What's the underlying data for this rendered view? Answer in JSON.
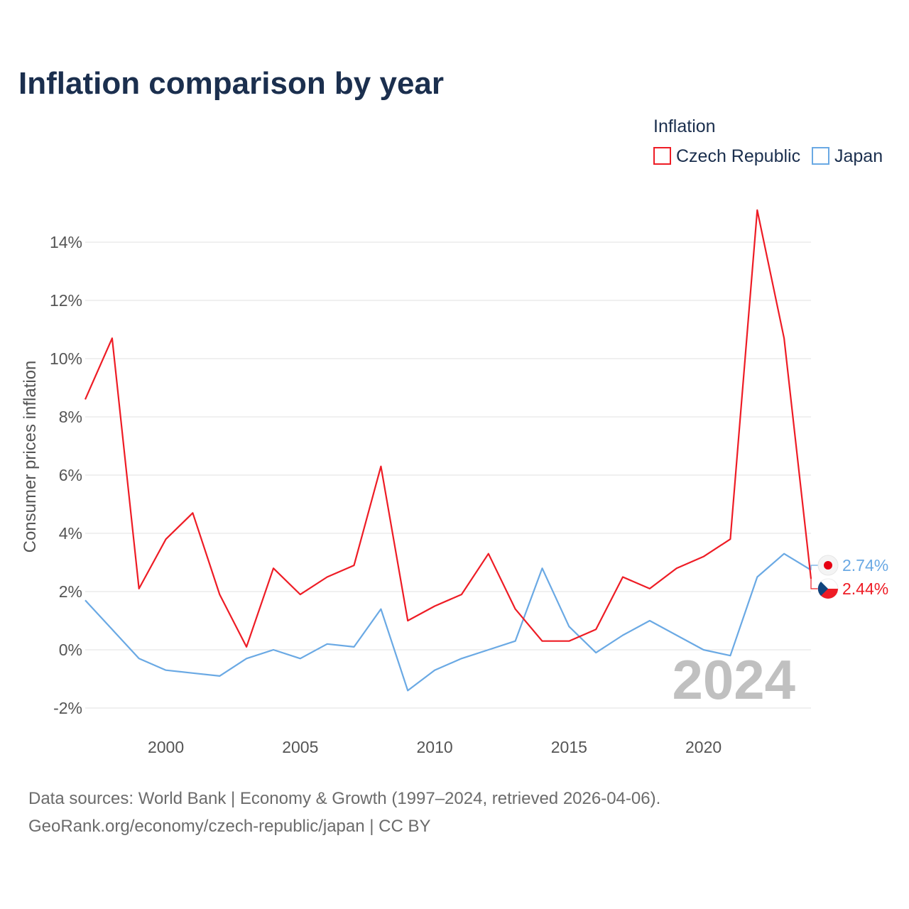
{
  "chart_data": {
    "type": "line",
    "title": "Inflation comparison by year",
    "legend_title": "Inflation",
    "ylabel": "Consumer prices inflation",
    "xlabel": "",
    "xlim": [
      1997,
      2024
    ],
    "ylim": [
      -3,
      15
    ],
    "x_ticks": [
      2000,
      2005,
      2010,
      2015,
      2020
    ],
    "x_tick_labels": [
      "2000",
      "2005",
      "2010",
      "2015",
      "2020"
    ],
    "y_ticks": [
      -2,
      0,
      2,
      4,
      6,
      8,
      10,
      12,
      14
    ],
    "y_tick_labels": [
      "-2%",
      "0%",
      "2%",
      "4%",
      "6%",
      "8%",
      "10%",
      "12%",
      "14%"
    ],
    "grid": true,
    "legend_position": "top-right",
    "current_year": "2024",
    "x": [
      1997,
      1998,
      1999,
      2000,
      2001,
      2002,
      2003,
      2004,
      2005,
      2006,
      2007,
      2008,
      2009,
      2010,
      2011,
      2012,
      2013,
      2014,
      2015,
      2016,
      2017,
      2018,
      2019,
      2020,
      2021,
      2022,
      2023,
      2024
    ],
    "series": [
      {
        "name": "Czech Republic",
        "color": "#ee1c25",
        "end_label": "2.44%",
        "end_value": 2.44,
        "values": [
          8.6,
          10.7,
          2.1,
          3.8,
          4.7,
          1.9,
          0.1,
          2.8,
          1.9,
          2.5,
          2.9,
          6.3,
          1.0,
          1.5,
          1.9,
          3.3,
          1.4,
          0.3,
          0.3,
          0.7,
          2.5,
          2.1,
          2.8,
          3.2,
          3.8,
          15.1,
          10.7,
          2.44
        ]
      },
      {
        "name": "Japan",
        "color": "#6aa9e4",
        "end_label": "2.74%",
        "end_value": 2.74,
        "values": [
          1.7,
          0.7,
          -0.3,
          -0.7,
          -0.8,
          -0.9,
          -0.3,
          0.0,
          -0.3,
          0.2,
          0.1,
          1.4,
          -1.4,
          -0.7,
          -0.3,
          0.0,
          0.3,
          2.8,
          0.8,
          -0.1,
          0.5,
          1.0,
          0.5,
          0.0,
          -0.2,
          2.5,
          3.3,
          2.74
        ]
      }
    ]
  },
  "footer": {
    "source_line": "Data sources: World Bank | Economy & Growth (1997–2024, retrieved 2026-04-06).",
    "url_line": "GeoRank.org/economy/czech-republic/japan | CC BY"
  },
  "icons": {
    "czech_flag": "czech-republic-flag-icon",
    "japan_flag": "japan-flag-icon"
  }
}
